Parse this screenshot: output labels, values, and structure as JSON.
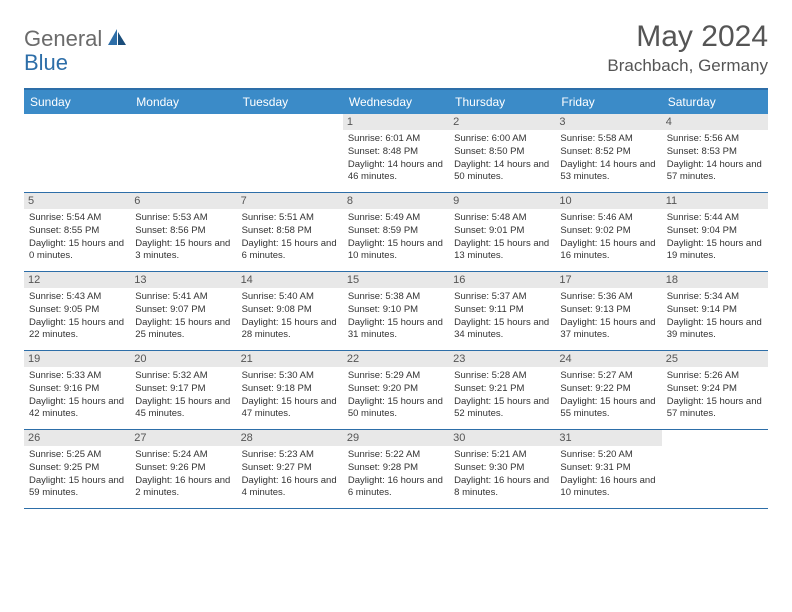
{
  "logo": {
    "general": "General",
    "blue": "Blue"
  },
  "title": "May 2024",
  "location": "Brachbach, Germany",
  "dayNames": [
    "Sunday",
    "Monday",
    "Tuesday",
    "Wednesday",
    "Thursday",
    "Friday",
    "Saturday"
  ],
  "colors": {
    "headerBg": "#3b8bc8",
    "borderTop": "#2d6ea8",
    "dayNumBg": "#e8e8e8",
    "text": "#333333"
  },
  "weeks": [
    [
      {
        "n": "",
        "sr": "",
        "ss": "",
        "dl": ""
      },
      {
        "n": "",
        "sr": "",
        "ss": "",
        "dl": ""
      },
      {
        "n": "",
        "sr": "",
        "ss": "",
        "dl": ""
      },
      {
        "n": "1",
        "sr": "6:01 AM",
        "ss": "8:48 PM",
        "dl": "14 hours and 46 minutes."
      },
      {
        "n": "2",
        "sr": "6:00 AM",
        "ss": "8:50 PM",
        "dl": "14 hours and 50 minutes."
      },
      {
        "n": "3",
        "sr": "5:58 AM",
        "ss": "8:52 PM",
        "dl": "14 hours and 53 minutes."
      },
      {
        "n": "4",
        "sr": "5:56 AM",
        "ss": "8:53 PM",
        "dl": "14 hours and 57 minutes."
      }
    ],
    [
      {
        "n": "5",
        "sr": "5:54 AM",
        "ss": "8:55 PM",
        "dl": "15 hours and 0 minutes."
      },
      {
        "n": "6",
        "sr": "5:53 AM",
        "ss": "8:56 PM",
        "dl": "15 hours and 3 minutes."
      },
      {
        "n": "7",
        "sr": "5:51 AM",
        "ss": "8:58 PM",
        "dl": "15 hours and 6 minutes."
      },
      {
        "n": "8",
        "sr": "5:49 AM",
        "ss": "8:59 PM",
        "dl": "15 hours and 10 minutes."
      },
      {
        "n": "9",
        "sr": "5:48 AM",
        "ss": "9:01 PM",
        "dl": "15 hours and 13 minutes."
      },
      {
        "n": "10",
        "sr": "5:46 AM",
        "ss": "9:02 PM",
        "dl": "15 hours and 16 minutes."
      },
      {
        "n": "11",
        "sr": "5:44 AM",
        "ss": "9:04 PM",
        "dl": "15 hours and 19 minutes."
      }
    ],
    [
      {
        "n": "12",
        "sr": "5:43 AM",
        "ss": "9:05 PM",
        "dl": "15 hours and 22 minutes."
      },
      {
        "n": "13",
        "sr": "5:41 AM",
        "ss": "9:07 PM",
        "dl": "15 hours and 25 minutes."
      },
      {
        "n": "14",
        "sr": "5:40 AM",
        "ss": "9:08 PM",
        "dl": "15 hours and 28 minutes."
      },
      {
        "n": "15",
        "sr": "5:38 AM",
        "ss": "9:10 PM",
        "dl": "15 hours and 31 minutes."
      },
      {
        "n": "16",
        "sr": "5:37 AM",
        "ss": "9:11 PM",
        "dl": "15 hours and 34 minutes."
      },
      {
        "n": "17",
        "sr": "5:36 AM",
        "ss": "9:13 PM",
        "dl": "15 hours and 37 minutes."
      },
      {
        "n": "18",
        "sr": "5:34 AM",
        "ss": "9:14 PM",
        "dl": "15 hours and 39 minutes."
      }
    ],
    [
      {
        "n": "19",
        "sr": "5:33 AM",
        "ss": "9:16 PM",
        "dl": "15 hours and 42 minutes."
      },
      {
        "n": "20",
        "sr": "5:32 AM",
        "ss": "9:17 PM",
        "dl": "15 hours and 45 minutes."
      },
      {
        "n": "21",
        "sr": "5:30 AM",
        "ss": "9:18 PM",
        "dl": "15 hours and 47 minutes."
      },
      {
        "n": "22",
        "sr": "5:29 AM",
        "ss": "9:20 PM",
        "dl": "15 hours and 50 minutes."
      },
      {
        "n": "23",
        "sr": "5:28 AM",
        "ss": "9:21 PM",
        "dl": "15 hours and 52 minutes."
      },
      {
        "n": "24",
        "sr": "5:27 AM",
        "ss": "9:22 PM",
        "dl": "15 hours and 55 minutes."
      },
      {
        "n": "25",
        "sr": "5:26 AM",
        "ss": "9:24 PM",
        "dl": "15 hours and 57 minutes."
      }
    ],
    [
      {
        "n": "26",
        "sr": "5:25 AM",
        "ss": "9:25 PM",
        "dl": "15 hours and 59 minutes."
      },
      {
        "n": "27",
        "sr": "5:24 AM",
        "ss": "9:26 PM",
        "dl": "16 hours and 2 minutes."
      },
      {
        "n": "28",
        "sr": "5:23 AM",
        "ss": "9:27 PM",
        "dl": "16 hours and 4 minutes."
      },
      {
        "n": "29",
        "sr": "5:22 AM",
        "ss": "9:28 PM",
        "dl": "16 hours and 6 minutes."
      },
      {
        "n": "30",
        "sr": "5:21 AM",
        "ss": "9:30 PM",
        "dl": "16 hours and 8 minutes."
      },
      {
        "n": "31",
        "sr": "5:20 AM",
        "ss": "9:31 PM",
        "dl": "16 hours and 10 minutes."
      },
      {
        "n": "",
        "sr": "",
        "ss": "",
        "dl": ""
      }
    ]
  ],
  "labels": {
    "sunrise": "Sunrise: ",
    "sunset": "Sunset: ",
    "daylight": "Daylight: "
  }
}
